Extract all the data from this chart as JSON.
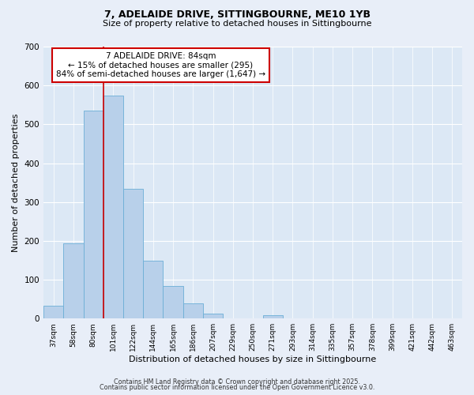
{
  "title_line1": "7, ADELAIDE DRIVE, SITTINGBOURNE, ME10 1YB",
  "title_line2": "Size of property relative to detached houses in Sittingbourne",
  "bar_labels": [
    "37sqm",
    "58sqm",
    "80sqm",
    "101sqm",
    "122sqm",
    "144sqm",
    "165sqm",
    "186sqm",
    "207sqm",
    "229sqm",
    "250sqm",
    "271sqm",
    "293sqm",
    "314sqm",
    "335sqm",
    "357sqm",
    "378sqm",
    "399sqm",
    "421sqm",
    "442sqm",
    "463sqm"
  ],
  "bar_values": [
    32,
    193,
    535,
    574,
    333,
    148,
    84,
    40,
    13,
    0,
    0,
    8,
    0,
    0,
    0,
    0,
    0,
    0,
    0,
    0,
    0
  ],
  "bar_color": "#b8d0ea",
  "bar_edge_color": "#6baed6",
  "vline_x_index": 2,
  "vline_color": "#cc0000",
  "xlabel": "Distribution of detached houses by size in Sittingbourne",
  "ylabel": "Number of detached properties",
  "ylim": [
    0,
    700
  ],
  "yticks": [
    0,
    100,
    200,
    300,
    400,
    500,
    600,
    700
  ],
  "annotation_title": "7 ADELAIDE DRIVE: 84sqm",
  "annotation_line2": "← 15% of detached houses are smaller (295)",
  "annotation_line3": "84% of semi-detached houses are larger (1,647) →",
  "footer_line1": "Contains HM Land Registry data © Crown copyright and database right 2025.",
  "footer_line2": "Contains public sector information licensed under the Open Government Licence v3.0.",
  "bg_color": "#e8eef8",
  "plot_bg_color": "#dce8f5",
  "grid_color": "#ffffff"
}
